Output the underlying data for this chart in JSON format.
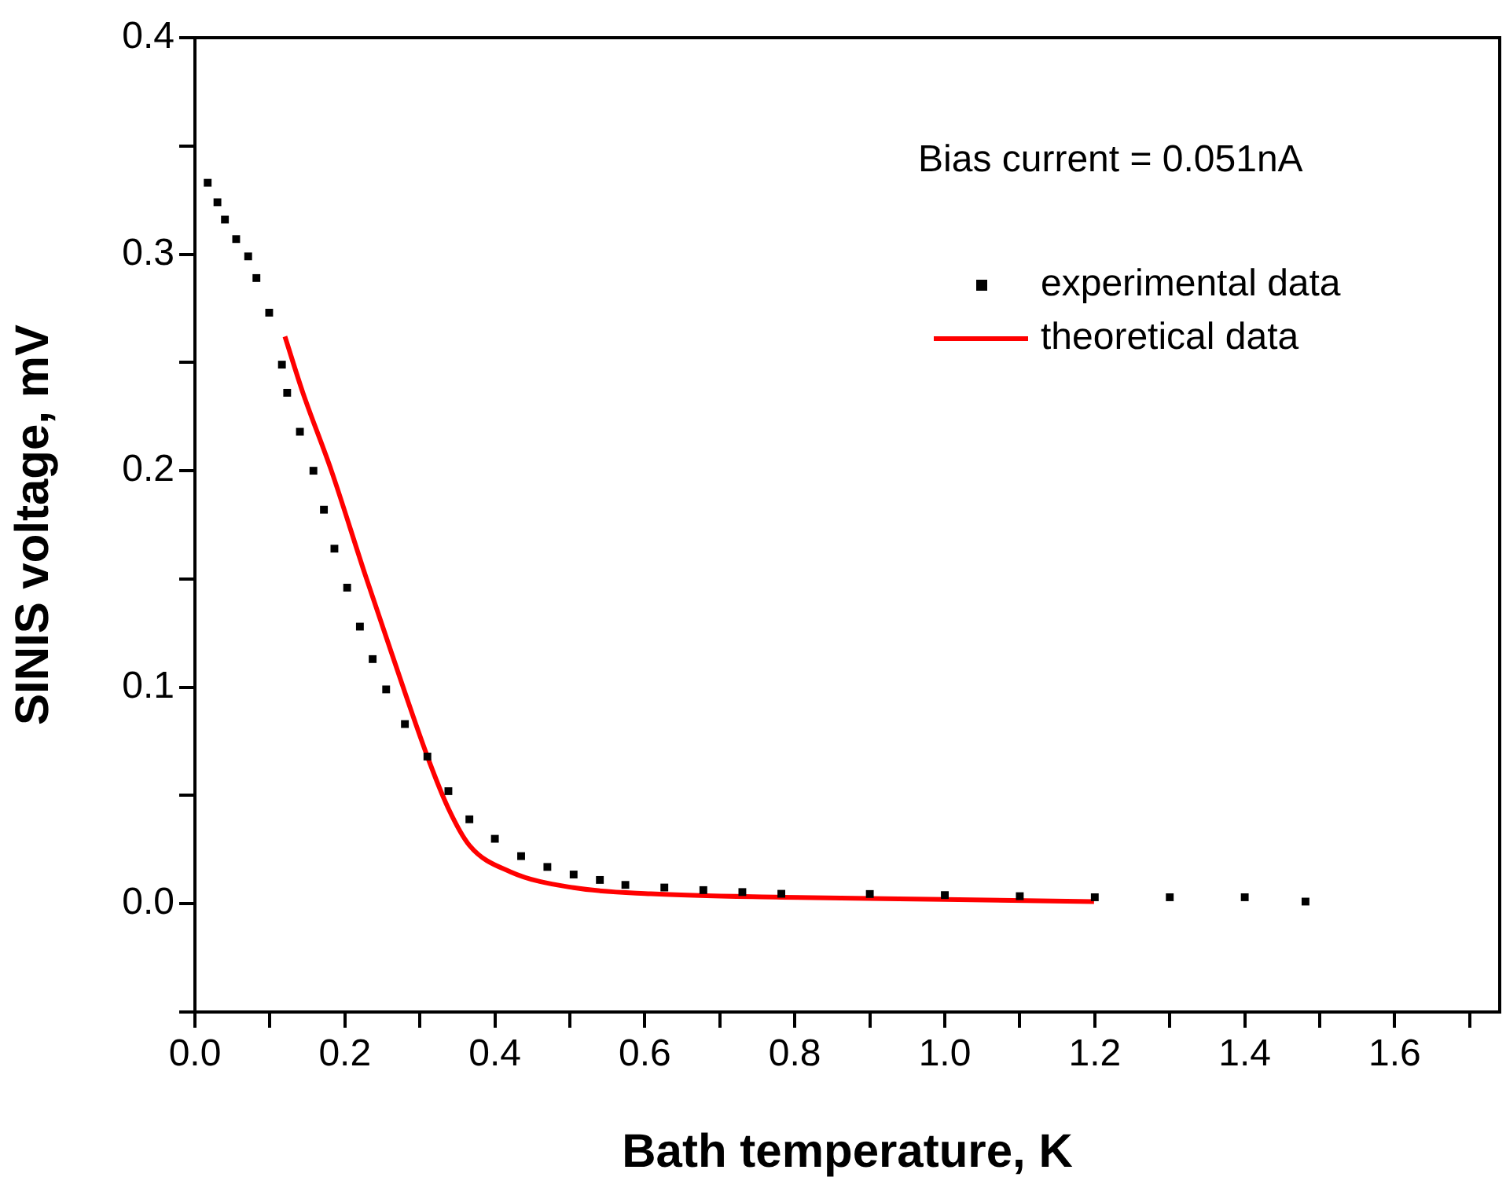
{
  "chart_data": {
    "type": "scatter",
    "xlabel": "Bath temperature, K",
    "ylabel": "SINIS voltage, mV",
    "xlim": [
      0,
      1.74
    ],
    "ylim": [
      -0.05,
      0.4
    ],
    "xticks": [
      {
        "value": 0,
        "label": "0.0"
      },
      {
        "value": 0.1,
        "label": null
      },
      0.2,
      {
        "value": 0.3,
        "label": null
      },
      0.4,
      {
        "value": 0.5,
        "label": null
      },
      0.6,
      {
        "value": 0.7,
        "label": null
      },
      0.8,
      {
        "value": 0.9,
        "label": null
      },
      {
        "value": 1.0,
        "label": "1.0"
      },
      {
        "value": 1.1,
        "label": null
      },
      1.2,
      {
        "value": 1.3,
        "label": null
      },
      1.4,
      {
        "value": 1.5,
        "label": null
      },
      1.6,
      {
        "value": 1.7,
        "label": null
      }
    ],
    "yticks": [
      {
        "value": -0.05,
        "label": null
      },
      {
        "value": 0,
        "label": "0.0"
      },
      {
        "value": 0.05,
        "label": null
      },
      0.1,
      {
        "value": 0.15,
        "label": null
      },
      0.2,
      {
        "value": 0.25,
        "label": null
      },
      0.3,
      {
        "value": 0.35,
        "label": null
      },
      0.4
    ],
    "annotations": [
      "Bias current = 0.051nA"
    ],
    "legend": "top right",
    "grid": false,
    "series": [
      {
        "name": "experimental data",
        "type": "scatter",
        "marker": "square",
        "color": "#000000",
        "x": [
          0.017,
          0.03,
          0.04,
          0.055,
          0.071,
          0.082,
          0.099,
          0.116,
          0.123,
          0.14,
          0.158,
          0.172,
          0.186,
          0.203,
          0.22,
          0.237,
          0.255,
          0.28,
          0.31,
          0.338,
          0.366,
          0.4,
          0.435,
          0.47,
          0.505,
          0.54,
          0.574,
          0.626,
          0.678,
          0.73,
          0.782,
          0.9,
          1.0,
          1.1,
          1.2,
          1.3,
          1.4,
          1.481
        ],
        "values": [
          0.333,
          0.324,
          0.316,
          0.307,
          0.299,
          0.289,
          0.273,
          0.249,
          0.236,
          0.218,
          0.2,
          0.182,
          0.164,
          0.146,
          0.128,
          0.113,
          0.099,
          0.083,
          0.068,
          0.052,
          0.039,
          0.03,
          0.022,
          0.017,
          0.0135,
          0.011,
          0.0087,
          0.0075,
          0.0063,
          0.0054,
          0.0046,
          0.0045,
          0.004,
          0.0035,
          0.003,
          0.003,
          0.003,
          0.001
        ]
      },
      {
        "name": "theoretical data",
        "type": "line",
        "marker": "none",
        "color": "#ff0000",
        "x": [
          0.12,
          0.144,
          0.182,
          0.227,
          0.262,
          0.31,
          0.338,
          0.366,
          0.421,
          0.505,
          0.608,
          0.782,
          1.0,
          1.199
        ],
        "values": [
          0.262,
          0.236,
          0.2,
          0.152,
          0.116,
          0.068,
          0.044,
          0.027,
          0.0147,
          0.0074,
          0.0046,
          0.003,
          0.002,
          0.001
        ]
      }
    ]
  }
}
